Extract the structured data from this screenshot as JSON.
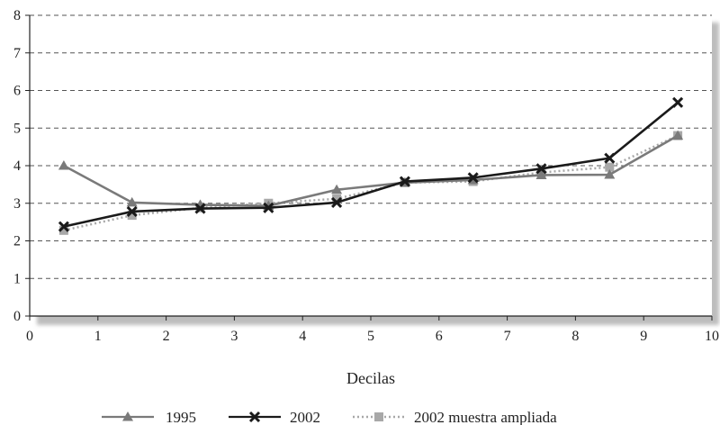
{
  "chart_data": {
    "type": "line",
    "xlabel": "Decilas",
    "ylabel": "",
    "xlim": [
      0,
      10
    ],
    "ylim": [
      0,
      8
    ],
    "x_ticks": [
      "0",
      "1",
      "2",
      "3",
      "4",
      "5",
      "6",
      "7",
      "8",
      "9",
      "10"
    ],
    "y_ticks": [
      "0",
      "1",
      "2",
      "3",
      "4",
      "5",
      "6",
      "7",
      "8"
    ],
    "grid": "horizontal dashed",
    "legend_position": "bottom-center",
    "x": [
      0.5,
      1.5,
      2.5,
      3.5,
      4.5,
      5.5,
      6.5,
      7.5,
      8.5,
      9.5
    ],
    "series": [
      {
        "name": "1995",
        "color": "#7a7a7a",
        "marker": "triangle",
        "line": "solid",
        "values": [
          4.0,
          3.02,
          2.96,
          2.93,
          3.36,
          3.55,
          3.62,
          3.75,
          3.76,
          4.8
        ]
      },
      {
        "name": "2002",
        "color": "#1a1a1a",
        "marker": "x",
        "line": "solid",
        "values": [
          2.38,
          2.78,
          2.86,
          2.88,
          3.02,
          3.58,
          3.68,
          3.92,
          4.2,
          5.68
        ]
      },
      {
        "name": "2002 muestra ampliada",
        "color": "#a8a8a8",
        "marker": "square",
        "line": "dotted",
        "values": [
          2.28,
          2.68,
          2.88,
          3.0,
          3.12,
          3.55,
          3.58,
          3.82,
          3.96,
          4.8
        ]
      }
    ]
  }
}
